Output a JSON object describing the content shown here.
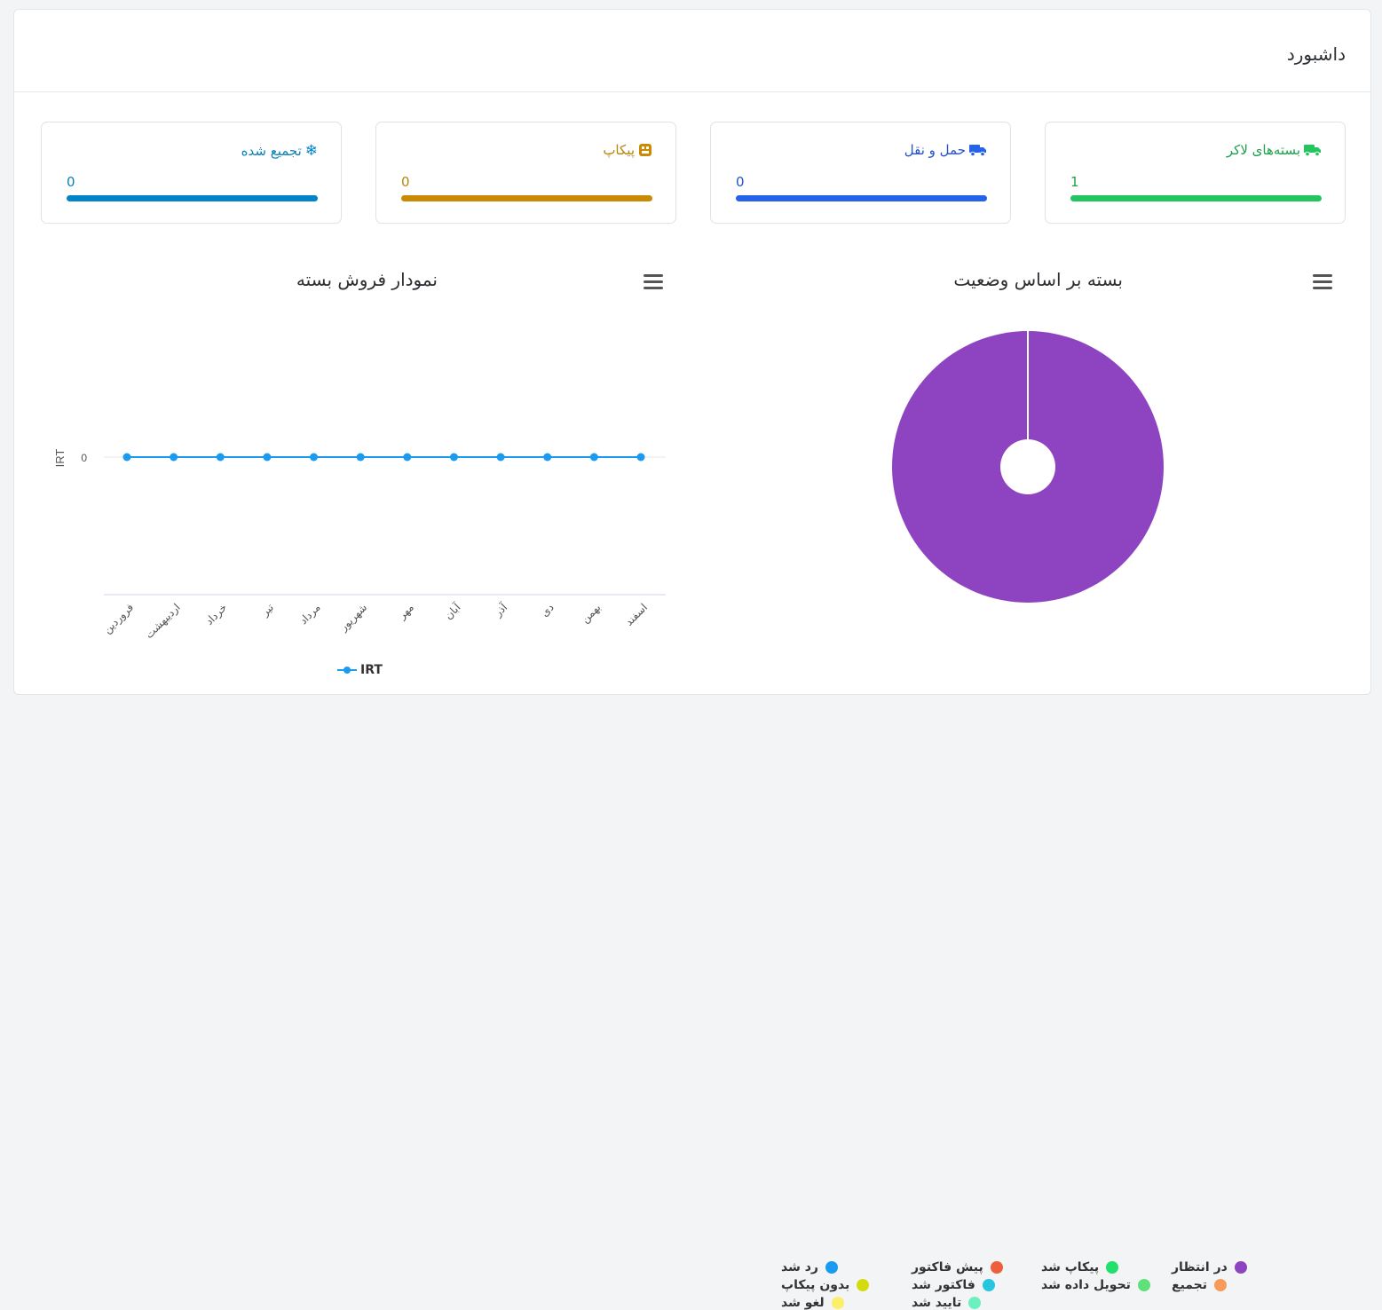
{
  "header": {
    "title": "داشبورد"
  },
  "stats": [
    {
      "label": "بسته‌های لاکر",
      "icon": "truck-icon",
      "value": "1",
      "progress": 1.0,
      "color": "#22c55e"
    },
    {
      "label": "حمل و نقل",
      "icon": "truck-icon",
      "value": "0",
      "progress": 1.0,
      "color": "#2563eb"
    },
    {
      "label": "پیکاپ",
      "icon": "box-icon",
      "value": "0",
      "progress": 1.0,
      "color": "#ca8a04"
    },
    {
      "label": "تجمیع شده",
      "icon": "snowflake-icon",
      "value": "0",
      "progress": 1.0,
      "color": "#0284c7"
    }
  ],
  "status_chart": {
    "title": "بسته بر اساس وضعیت",
    "legend": [
      {
        "label": "در انتظار",
        "color": "#8e44c0"
      },
      {
        "label": "پیکاپ شد",
        "color": "#22e06b"
      },
      {
        "label": "پیش فاکتور",
        "color": "#ee5f3b"
      },
      {
        "label": "رد شد",
        "color": "#1a9bf0"
      },
      {
        "label": "تجمیع",
        "color": "#f79a5a"
      },
      {
        "label": "تحویل داده شد",
        "color": "#5fe07a"
      },
      {
        "label": "فاکتور شد",
        "color": "#26c6e0"
      },
      {
        "label": "بدون پیکاپ",
        "color": "#d4dc10"
      },
      {
        "label": "تایید شد",
        "color": "#6df0c0"
      },
      {
        "label": "لغو شد",
        "color": "#fbef6a"
      }
    ]
  },
  "sales_chart": {
    "title": "نمودار فروش بسته",
    "legend_label": "IRT"
  },
  "chart_data": [
    {
      "type": "pie",
      "title": "بسته بر اساس وضعیت",
      "categories": [
        "در انتظار"
      ],
      "values": [
        1
      ]
    },
    {
      "type": "line",
      "title": "نمودار فروش بسته",
      "ylabel": "IRT",
      "xlabel": "",
      "categories": [
        "فروردین",
        "اردیبهشت",
        "خرداد",
        "تیر",
        "مرداد",
        "شهریور",
        "مهر",
        "آبان",
        "آذر",
        "دی",
        "بهمن",
        "اسفند"
      ],
      "series": [
        {
          "name": "IRT",
          "values": [
            0,
            0,
            0,
            0,
            0,
            0,
            0,
            0,
            0,
            0,
            0,
            0
          ]
        }
      ],
      "yticks": [
        "0"
      ],
      "color": "#1a9bf0"
    }
  ]
}
